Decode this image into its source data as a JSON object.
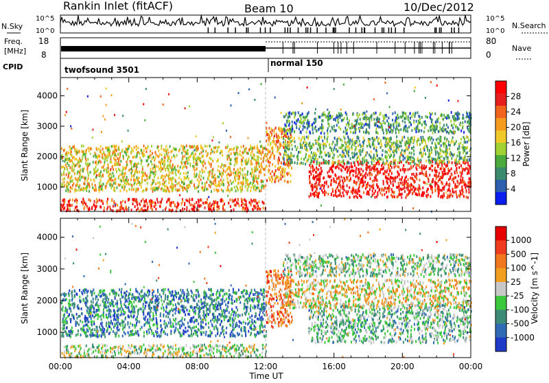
{
  "header": {
    "station": "Rankin Inlet (fitACF)",
    "beam": "Beam 10",
    "date": "10/Dec/2012"
  },
  "nsky_panel": {
    "left_label": "N.Sky",
    "right_label": "N.Search",
    "left_ticks": [
      "10^5",
      "10^0"
    ],
    "right_ticks": [
      "10^5",
      "10^0"
    ]
  },
  "freq_panel": {
    "left_label_line1": "Freq.",
    "left_label_line2": "[MHz]",
    "right_label": "Nave",
    "left_ticks": [
      "18",
      "8"
    ],
    "right_ticks": [
      "80",
      "0"
    ]
  },
  "cpid": {
    "label": "CPID",
    "segments": [
      {
        "name": "twofsound 3501",
        "start_hour": 0,
        "end_hour": 12
      },
      {
        "name": "normal 150",
        "start_hour": 12,
        "end_hour": 24
      }
    ]
  },
  "chart_data": [
    {
      "type": "heatmap",
      "title": "",
      "xlabel": "Time UT",
      "ylabel": "Slant Range [km]",
      "xlim": [
        0,
        24
      ],
      "ylim": [
        200,
        4600
      ],
      "x_ticks": [
        "00:00",
        "04:00",
        "08:00",
        "12:00",
        "16:00",
        "20:00",
        "00:00"
      ],
      "y_ticks": [
        "1000",
        "2000",
        "3000",
        "4000"
      ],
      "colorbar": {
        "label": "Power [dB]",
        "tick_labels": [
          "4",
          "8",
          "12",
          "16",
          "20",
          "24",
          "28"
        ],
        "colors": [
          "#0a1ef0",
          "#2c5fb0",
          "#3a8a6e",
          "#4aaa3c",
          "#a0d234",
          "#f0c828",
          "#f59b1e",
          "#f0641e",
          "#e61e1e",
          "#ff0000"
        ]
      },
      "scatter_regions": [
        {
          "t_start": 0.0,
          "t_end": 12.0,
          "range_start": 250,
          "range_end": 650,
          "level": 0.9
        },
        {
          "t_start": 0.0,
          "t_end": 12.0,
          "range_start": 900,
          "range_end": 2400,
          "level": 0.55
        },
        {
          "t_start": 12.0,
          "t_end": 13.5,
          "range_start": 1200,
          "range_end": 3000,
          "level": 0.7
        },
        {
          "t_start": 14.5,
          "t_end": 24.0,
          "range_start": 700,
          "range_end": 1900,
          "level": 0.95
        },
        {
          "t_start": 13.0,
          "t_end": 24.0,
          "range_start": 1800,
          "range_end": 2700,
          "level": 0.35
        },
        {
          "t_start": 13.0,
          "t_end": 24.0,
          "range_start": 2800,
          "range_end": 3500,
          "level": 0.25
        }
      ]
    },
    {
      "type": "heatmap",
      "title": "",
      "xlabel": "Time UT",
      "ylabel": "Slant Range [km]",
      "xlim": [
        0,
        24
      ],
      "ylim": [
        200,
        4600
      ],
      "x_ticks": [
        "00:00",
        "04:00",
        "08:00",
        "12:00",
        "16:00",
        "20:00",
        "00:00"
      ],
      "y_ticks": [
        "1000",
        "2000",
        "3000",
        "4000"
      ],
      "colorbar": {
        "label": "Velocity [m s^-1]",
        "tick_labels": [
          "1000",
          "500",
          "100",
          "25",
          "-25",
          "-100",
          "-500",
          "-1000"
        ],
        "colors": [
          "#1e3cc8",
          "#2f6ab4",
          "#3c8c78",
          "#3cc83c",
          "#c8c8c8",
          "#f0a01e",
          "#f0781e",
          "#f03c1e",
          "#e60000"
        ]
      },
      "scatter_regions": [
        {
          "t_start": 0.0,
          "t_end": 12.0,
          "range_start": 250,
          "range_end": 650,
          "level": 0.45
        },
        {
          "t_start": 0.0,
          "t_end": 12.0,
          "range_start": 900,
          "range_end": 2400,
          "level": 0.2
        },
        {
          "t_start": 12.0,
          "t_end": 13.5,
          "range_start": 1200,
          "range_end": 3000,
          "level": 0.75
        },
        {
          "t_start": 14.5,
          "t_end": 24.0,
          "range_start": 700,
          "range_end": 1900,
          "level": 0.35
        },
        {
          "t_start": 13.0,
          "t_end": 24.0,
          "range_start": 1800,
          "range_end": 2700,
          "level": 0.55
        },
        {
          "t_start": 13.0,
          "t_end": 24.0,
          "range_start": 2800,
          "range_end": 3500,
          "level": 0.4
        }
      ]
    }
  ]
}
